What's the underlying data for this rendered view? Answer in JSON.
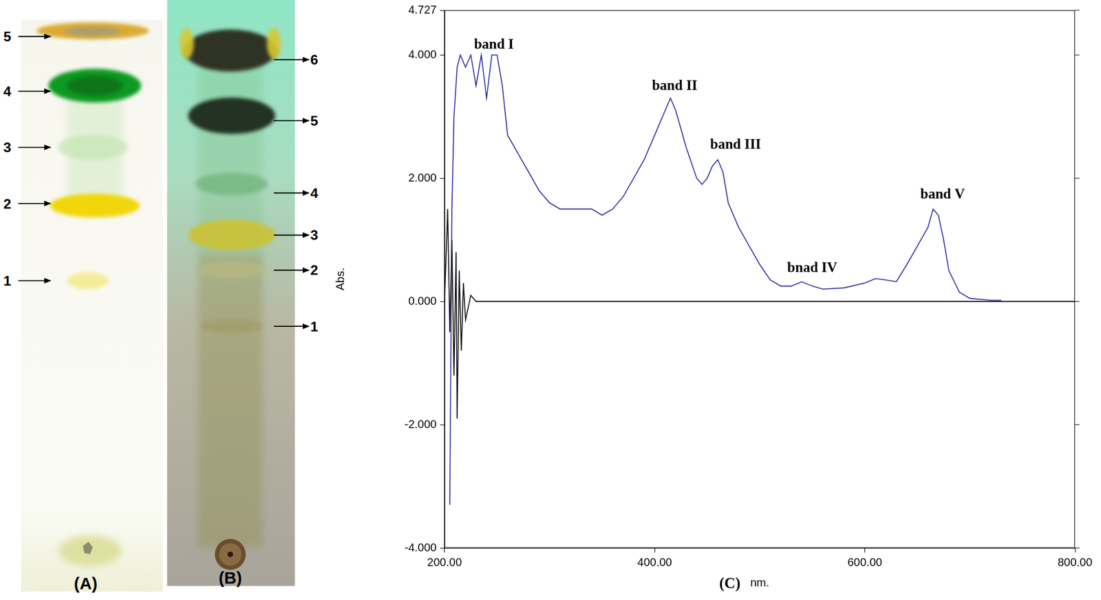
{
  "chart_data": {
    "type": "line",
    "panel_label": "(C)",
    "x_label": "nm.",
    "y_label": "Abs.",
    "xlim": [
      200,
      800
    ],
    "ylim": [
      -4,
      4.727
    ],
    "xticks": [
      {
        "value": 200,
        "label": "200.00"
      },
      {
        "value": 400,
        "label": "400.00"
      },
      {
        "value": 600,
        "label": "600.00"
      },
      {
        "value": 800,
        "label": "800.00"
      }
    ],
    "yticks": [
      {
        "value": -4,
        "label": "-4.000"
      },
      {
        "value": -2,
        "label": "-2.000"
      },
      {
        "value": 0,
        "label": "0.000"
      },
      {
        "value": 2,
        "label": "2.000"
      },
      {
        "value": 4,
        "label": "4.000"
      },
      {
        "value": 4.727,
        "label": "4.727"
      }
    ],
    "grid": false,
    "series": [
      {
        "color": "#1f1f9e",
        "x": [
          205,
          207,
          209,
          212,
          215,
          220,
          225,
          230,
          235,
          240,
          245,
          250,
          255,
          260,
          270,
          280,
          290,
          300,
          310,
          320,
          340,
          350,
          360,
          370,
          380,
          390,
          400,
          410,
          415,
          420,
          430,
          440,
          445,
          450,
          455,
          460,
          465,
          470,
          480,
          490,
          500,
          510,
          520,
          530,
          540,
          550,
          560,
          580,
          600,
          610,
          620,
          630,
          640,
          650,
          660,
          665,
          670,
          675,
          680,
          690,
          700,
          720,
          730
        ],
        "values": [
          -3.3,
          1.5,
          3.0,
          3.8,
          4.0,
          3.8,
          4.0,
          3.5,
          4.0,
          3.3,
          4.0,
          4.0,
          3.5,
          2.7,
          2.4,
          2.1,
          1.8,
          1.6,
          1.5,
          1.5,
          1.5,
          1.4,
          1.5,
          1.7,
          2.0,
          2.3,
          2.7,
          3.1,
          3.3,
          3.1,
          2.5,
          2.0,
          1.9,
          2.0,
          2.2,
          2.3,
          2.1,
          1.6,
          1.2,
          0.9,
          0.6,
          0.35,
          0.25,
          0.25,
          0.32,
          0.25,
          0.2,
          0.22,
          0.3,
          0.37,
          0.35,
          0.32,
          0.6,
          0.9,
          1.2,
          1.5,
          1.4,
          1.0,
          0.5,
          0.15,
          0.05,
          0.02,
          0.02
        ]
      },
      {
        "color": "#000000",
        "x": [
          200,
          203,
          205,
          207,
          209,
          211,
          212,
          214,
          216,
          218,
          220,
          225,
          230,
          240,
          800
        ],
        "values": [
          0,
          1.5,
          -0.5,
          1.0,
          -1.2,
          0.8,
          -1.9,
          0.5,
          -0.8,
          0.3,
          -0.3,
          0.1,
          0,
          0,
          0
        ]
      }
    ],
    "annotations": [
      {
        "text": "band I",
        "x": 247,
        "y": 4.05
      },
      {
        "text": "band II",
        "x": 419,
        "y": 3.38
      },
      {
        "text": "band III",
        "x": 477,
        "y": 2.42
      },
      {
        "text": "bnad IV",
        "x": 550,
        "y": 0.42
      },
      {
        "text": "band V",
        "x": 674,
        "y": 1.62
      }
    ]
  },
  "plates": [
    {
      "label": "(A)",
      "spots": [
        "1",
        "2",
        "3",
        "4",
        "5"
      ]
    },
    {
      "label": "(B)",
      "spots": [
        "1",
        "2",
        "3",
        "4",
        "5",
        "6"
      ]
    }
  ]
}
